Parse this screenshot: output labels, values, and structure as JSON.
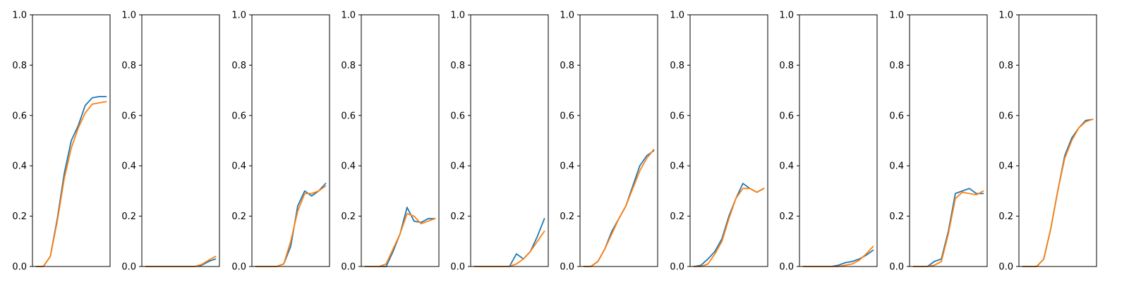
{
  "colors": {
    "series_a": "#1f77b4",
    "series_b": "#ff7f0e"
  },
  "chart_data": [
    {
      "type": "line",
      "ylim": [
        0,
        1
      ],
      "yticks": [
        "0.0",
        "0.2",
        "0.4",
        "0.6",
        "0.8",
        "1.0"
      ],
      "x": [
        0,
        1,
        2,
        3,
        4,
        5,
        6,
        7,
        8,
        9,
        10
      ],
      "series": [
        {
          "color": "#1f77b4",
          "values": [
            0.0,
            0.0,
            0.04,
            0.19,
            0.37,
            0.5,
            0.56,
            0.64,
            0.67,
            0.675,
            0.675
          ]
        },
        {
          "color": "#ff7f0e",
          "values": [
            0.0,
            0.0,
            0.04,
            0.18,
            0.35,
            0.47,
            0.55,
            0.61,
            0.645,
            0.65,
            0.655
          ]
        }
      ]
    },
    {
      "type": "line",
      "ylim": [
        0,
        1
      ],
      "yticks": [
        "0.0",
        "0.2",
        "0.4",
        "0.6",
        "0.8",
        "1.0"
      ],
      "x": [
        0,
        1,
        2,
        3,
        4,
        5,
        6,
        7,
        8,
        9,
        10
      ],
      "series": [
        {
          "color": "#1f77b4",
          "values": [
            0,
            0,
            0,
            0,
            0,
            0,
            0,
            0,
            0.005,
            0.02,
            0.03
          ]
        },
        {
          "color": "#ff7f0e",
          "values": [
            0,
            0,
            0,
            0,
            0,
            0,
            0,
            0,
            0.008,
            0.025,
            0.04
          ]
        }
      ]
    },
    {
      "type": "line",
      "ylim": [
        0,
        1
      ],
      "yticks": [
        "0.0",
        "0.2",
        "0.4",
        "0.6",
        "0.8",
        "1.0"
      ],
      "x": [
        0,
        1,
        2,
        3,
        4,
        5,
        6,
        7,
        8,
        9,
        10
      ],
      "series": [
        {
          "color": "#1f77b4",
          "values": [
            0,
            0,
            0,
            0,
            0.01,
            0.08,
            0.24,
            0.3,
            0.28,
            0.3,
            0.33
          ]
        },
        {
          "color": "#ff7f0e",
          "values": [
            0,
            0,
            0,
            0,
            0.01,
            0.1,
            0.22,
            0.29,
            0.29,
            0.3,
            0.32
          ]
        }
      ]
    },
    {
      "type": "line",
      "ylim": [
        0,
        1
      ],
      "yticks": [
        "0.0",
        "0.2",
        "0.4",
        "0.6",
        "0.8",
        "1.0"
      ],
      "x": [
        0,
        1,
        2,
        3,
        4,
        5,
        6,
        7,
        8,
        9,
        10
      ],
      "series": [
        {
          "color": "#1f77b4",
          "values": [
            0,
            0,
            0,
            0,
            0.06,
            0.13,
            0.235,
            0.18,
            0.175,
            0.19,
            0.19
          ]
        },
        {
          "color": "#ff7f0e",
          "values": [
            0,
            0,
            0,
            0.01,
            0.07,
            0.13,
            0.21,
            0.2,
            0.17,
            0.18,
            0.19
          ]
        }
      ]
    },
    {
      "type": "line",
      "ylim": [
        0,
        1
      ],
      "yticks": [
        "0.0",
        "0.2",
        "0.4",
        "0.6",
        "0.8",
        "1.0"
      ],
      "x": [
        0,
        1,
        2,
        3,
        4,
        5,
        6,
        7,
        8,
        9,
        10
      ],
      "series": [
        {
          "color": "#1f77b4",
          "values": [
            0,
            0,
            0,
            0,
            0,
            0,
            0.05,
            0.03,
            0.06,
            0.12,
            0.19
          ]
        },
        {
          "color": "#ff7f0e",
          "values": [
            0,
            0,
            0,
            0,
            0,
            0,
            0.01,
            0.03,
            0.06,
            0.1,
            0.14
          ]
        }
      ]
    },
    {
      "type": "line",
      "ylim": [
        0,
        1
      ],
      "yticks": [
        "0.0",
        "0.2",
        "0.4",
        "0.6",
        "0.8",
        "1.0"
      ],
      "x": [
        0,
        1,
        2,
        3,
        4,
        5,
        6,
        7,
        8,
        9,
        10
      ],
      "series": [
        {
          "color": "#1f77b4",
          "values": [
            0,
            0,
            0.02,
            0.07,
            0.14,
            0.19,
            0.24,
            0.32,
            0.4,
            0.44,
            0.46
          ]
        },
        {
          "color": "#ff7f0e",
          "values": [
            0,
            0,
            0.02,
            0.07,
            0.13,
            0.19,
            0.24,
            0.31,
            0.38,
            0.43,
            0.465
          ]
        }
      ]
    },
    {
      "type": "line",
      "ylim": [
        0,
        1
      ],
      "yticks": [
        "0.0",
        "0.2",
        "0.4",
        "0.6",
        "0.8",
        "1.0"
      ],
      "x": [
        0,
        1,
        2,
        3,
        4,
        5,
        6,
        7,
        8,
        9,
        10
      ],
      "series": [
        {
          "color": "#1f77b4",
          "values": [
            0,
            0.005,
            0.03,
            0.06,
            0.11,
            0.2,
            0.27,
            0.33,
            0.31,
            0.295,
            0.31
          ]
        },
        {
          "color": "#ff7f0e",
          "values": [
            0,
            0,
            0.01,
            0.05,
            0.1,
            0.19,
            0.27,
            0.31,
            0.31,
            0.295,
            0.31
          ]
        }
      ]
    },
    {
      "type": "line",
      "ylim": [
        0,
        1
      ],
      "yticks": [
        "0.0",
        "0.2",
        "0.4",
        "0.6",
        "0.8",
        "1.0"
      ],
      "x": [
        0,
        1,
        2,
        3,
        4,
        5,
        6,
        7,
        8,
        9,
        10
      ],
      "series": [
        {
          "color": "#1f77b4",
          "values": [
            0,
            0,
            0,
            0,
            0,
            0.005,
            0.015,
            0.02,
            0.03,
            0.045,
            0.065
          ]
        },
        {
          "color": "#ff7f0e",
          "values": [
            0,
            0,
            0,
            0,
            0,
            0,
            0.005,
            0.01,
            0.025,
            0.05,
            0.08
          ]
        }
      ]
    },
    {
      "type": "line",
      "ylim": [
        0,
        1
      ],
      "yticks": [
        "0.0",
        "0.2",
        "0.4",
        "0.6",
        "0.8",
        "1.0"
      ],
      "x": [
        0,
        1,
        2,
        3,
        4,
        5,
        6,
        7,
        8,
        9,
        10
      ],
      "series": [
        {
          "color": "#1f77b4",
          "values": [
            0,
            0,
            0,
            0.02,
            0.03,
            0.14,
            0.29,
            0.3,
            0.31,
            0.29,
            0.29
          ]
        },
        {
          "color": "#ff7f0e",
          "values": [
            0,
            0,
            0,
            0.005,
            0.02,
            0.13,
            0.27,
            0.295,
            0.29,
            0.285,
            0.3
          ]
        }
      ]
    },
    {
      "type": "line",
      "ylim": [
        0,
        1
      ],
      "yticks": [
        "0.0",
        "0.2",
        "0.4",
        "0.6",
        "0.8",
        "1.0"
      ],
      "x": [
        0,
        1,
        2,
        3,
        4,
        5,
        6,
        7,
        8,
        9,
        10
      ],
      "series": [
        {
          "color": "#1f77b4",
          "values": [
            0,
            0,
            0,
            0.03,
            0.15,
            0.3,
            0.44,
            0.51,
            0.55,
            0.58,
            0.585
          ]
        },
        {
          "color": "#ff7f0e",
          "values": [
            0,
            0,
            0,
            0.03,
            0.15,
            0.3,
            0.43,
            0.5,
            0.55,
            0.575,
            0.585
          ]
        }
      ]
    }
  ]
}
